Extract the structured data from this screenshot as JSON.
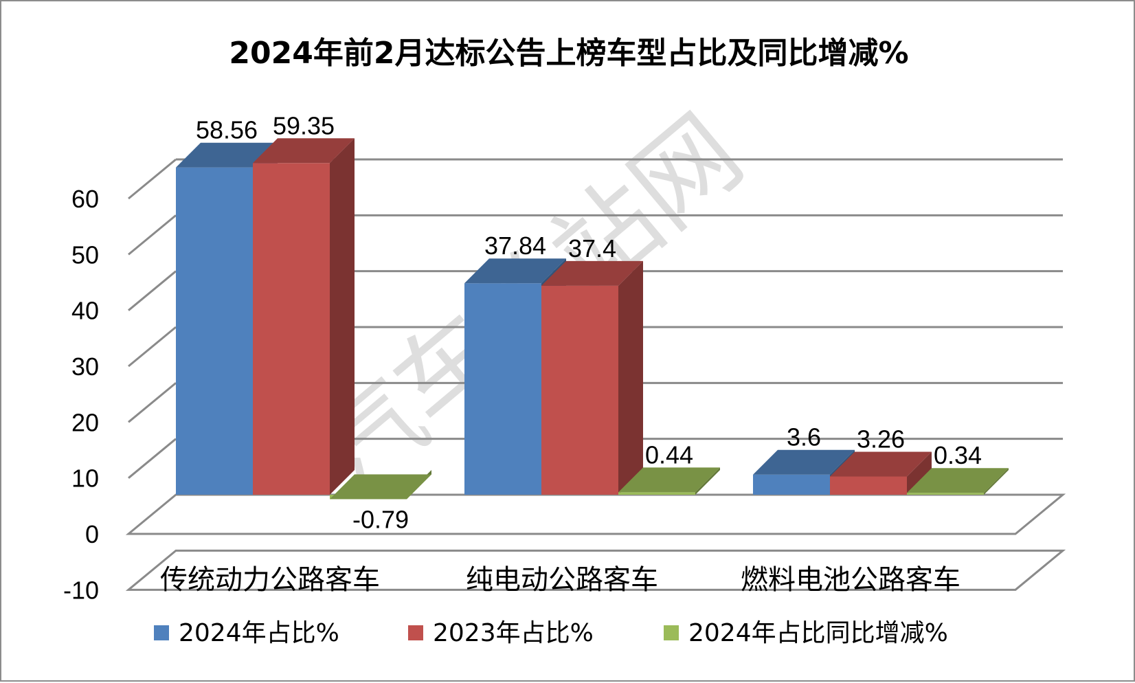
{
  "watermark": "汽车总站网",
  "chart_data": {
    "type": "bar",
    "title": "2024年前2月达标公告上榜车型占比及同比增减%",
    "categories": [
      "传统动力公路客车",
      "纯电动公路客车",
      "燃料电池公路客车"
    ],
    "series": [
      {
        "name": "2024年占比%",
        "values": [
          58.56,
          37.84,
          3.6
        ],
        "labels": [
          "58.56",
          "37.84",
          "3.6"
        ],
        "color": "#4f81bd"
      },
      {
        "name": "2023年占比%",
        "values": [
          59.35,
          37.4,
          3.26
        ],
        "labels": [
          "59.35",
          "37.4",
          "3.26"
        ],
        "color": "#c0504d"
      },
      {
        "name": "2024年占比同比增减%",
        "values": [
          -0.79,
          0.44,
          0.34
        ],
        "labels": [
          "-0.79",
          "0.44",
          "0.34"
        ],
        "color": "#9bbb59"
      }
    ],
    "y_ticks": [
      "-10",
      "0",
      "10",
      "20",
      "30",
      "40",
      "50",
      "60"
    ],
    "ylim": [
      -10,
      60
    ],
    "grid": true,
    "legend_position": "bottom",
    "style": "3d-clustered-column"
  }
}
